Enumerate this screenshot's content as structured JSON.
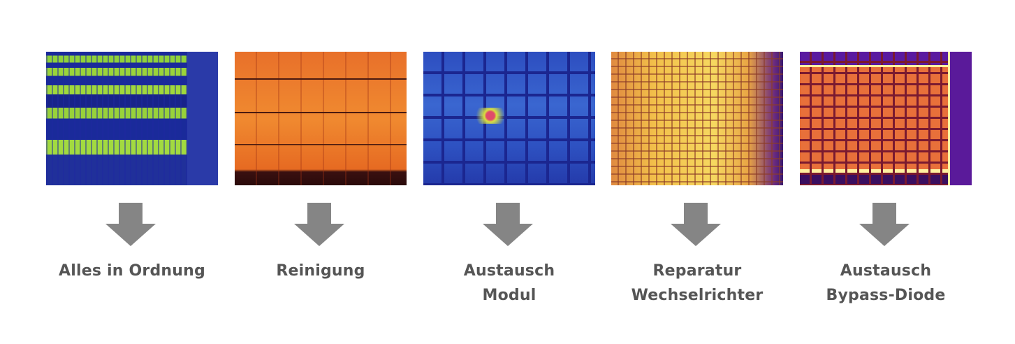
{
  "colors": {
    "arrow": "#858585",
    "label": "#555555"
  },
  "steps": [
    {
      "image": "thermal-image-solar-field",
      "palette": "blue-green",
      "lines": [
        "Alles in Ordnung"
      ]
    },
    {
      "image": "thermal-image-soiled-panels",
      "palette": "orange",
      "lines": [
        "Reinigung"
      ]
    },
    {
      "image": "thermal-image-hotspot-module",
      "palette": "blue",
      "lines": [
        "Austausch",
        "Modul"
      ]
    },
    {
      "image": "thermal-image-inverter-fault",
      "palette": "yellow-orange",
      "lines": [
        "Reparatur",
        "Wechselrichter"
      ]
    },
    {
      "image": "thermal-image-bypass-diode",
      "palette": "ironbow",
      "lines": [
        "Austausch",
        "Bypass-Diode"
      ]
    }
  ]
}
